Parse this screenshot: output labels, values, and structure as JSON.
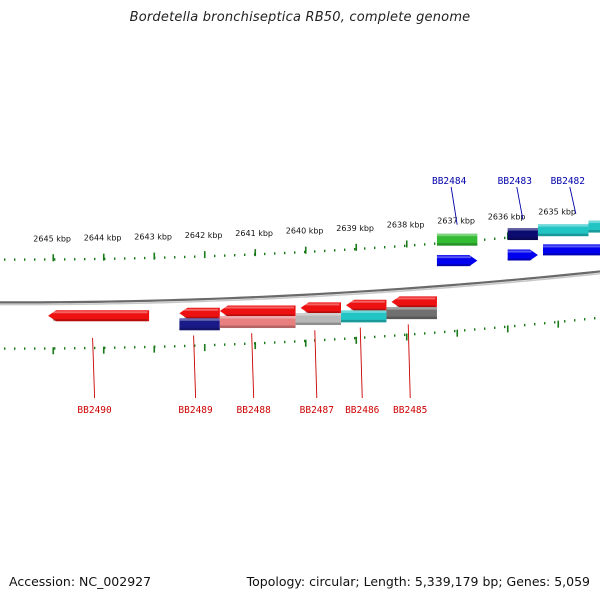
{
  "title": "Bordetella bronchiseptica RB50, complete genome",
  "footer": {
    "accession": "Accession: NC_002927",
    "summary": "Topology: circular; Length: 5,339,179 bp; Genes: 5,059"
  },
  "colors": {
    "forward_label": "#0000aa",
    "reverse_label": "#cc0000",
    "ticks": "#1a7a1a",
    "backbone": "#9a9a9a"
  },
  "kbp_ticks": [
    {
      "kbp": 2645,
      "label": "2645 kbp"
    },
    {
      "kbp": 2644,
      "label": "2644 kbp"
    },
    {
      "kbp": 2643,
      "label": "2643 kbp"
    },
    {
      "kbp": 2642,
      "label": "2642 kbp"
    },
    {
      "kbp": 2641,
      "label": "2641 kbp"
    },
    {
      "kbp": 2640,
      "label": "2640 kbp"
    },
    {
      "kbp": 2639,
      "label": "2639 kbp"
    },
    {
      "kbp": 2638,
      "label": "2638 kbp"
    },
    {
      "kbp": 2637,
      "label": "2637 kbp"
    },
    {
      "kbp": 2636,
      "label": "2636 kbp"
    },
    {
      "kbp": 2635,
      "label": "2635 kbp"
    }
  ],
  "genes": [
    {
      "id": "BB2490",
      "label": "BB2490",
      "strand": "reverse",
      "start_kbp": 2645.1,
      "end_kbp": 2643.1,
      "domains": []
    },
    {
      "id": "BB2489",
      "label": "BB2489",
      "strand": "reverse",
      "start_kbp": 2642.5,
      "end_kbp": 2641.7,
      "domains": [
        {
          "from": 2642.5,
          "to": 2641.7,
          "color": "#1a1a88"
        }
      ]
    },
    {
      "id": "BB2488",
      "label": "BB2488",
      "strand": "reverse",
      "start_kbp": 2641.7,
      "end_kbp": 2640.2,
      "domains": [
        {
          "from": 2641.7,
          "to": 2640.2,
          "color": "#e88080"
        }
      ]
    },
    {
      "id": "BB2487",
      "label": "BB2487",
      "strand": "reverse",
      "start_kbp": 2640.1,
      "end_kbp": 2639.3,
      "domains": [
        {
          "from": 2640.2,
          "to": 2639.3,
          "color": "#b8b8b8"
        }
      ]
    },
    {
      "id": "BB2486",
      "label": "BB2486",
      "strand": "reverse",
      "start_kbp": 2639.2,
      "end_kbp": 2638.4,
      "domains": [
        {
          "from": 2639.3,
          "to": 2638.4,
          "color": "#22c4c4"
        }
      ]
    },
    {
      "id": "BB2485",
      "label": "BB2485",
      "strand": "reverse",
      "start_kbp": 2638.3,
      "end_kbp": 2637.4,
      "domains": [
        {
          "from": 2638.4,
          "to": 2637.4,
          "color": "#707070"
        }
      ]
    },
    {
      "id": "BB2484",
      "label": "BB2484",
      "strand": "forward",
      "start_kbp": 2637.4,
      "end_kbp": 2636.6,
      "domains": [
        {
          "from": 2637.4,
          "to": 2636.6,
          "color": "#33bb33"
        }
      ]
    },
    {
      "id": "BB2483",
      "label": "BB2483",
      "strand": "forward",
      "start_kbp": 2636.0,
      "end_kbp": 2635.4,
      "domains": [
        {
          "from": 2636.0,
          "to": 2635.4,
          "color": "#0c0c70"
        }
      ]
    },
    {
      "id": "BB2482",
      "label": "BB2482",
      "strand": "forward",
      "start_kbp": 2635.3,
      "end_kbp": 2634.0,
      "domains": [
        {
          "from": 2635.4,
          "to": 2634.4,
          "color": "#22c4c4"
        },
        {
          "from": 2634.4,
          "to": 2634.0,
          "color": "#22c4c4"
        }
      ]
    }
  ]
}
